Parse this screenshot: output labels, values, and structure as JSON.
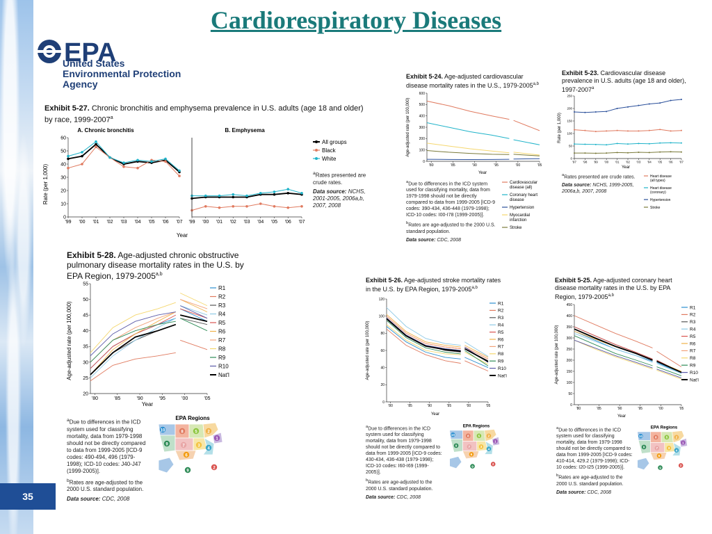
{
  "slide": {
    "title": "Cardiorespiratory Diseases",
    "page_number": "35"
  },
  "logo": {
    "letters": "EPA",
    "line1": "United States",
    "line2": "Environmental Protection",
    "line3": "Agency"
  },
  "x_year_ticks_99_07": [
    "'99",
    "'00",
    "'01",
    "'02",
    "'03",
    "'04",
    "'05",
    "'06",
    "'07"
  ],
  "x_year_ticks_97_07": [
    "'97",
    "'98",
    "'99",
    "'00",
    "'01",
    "'02",
    "'03",
    "'04",
    "'05",
    "'06",
    "'07"
  ],
  "x_year_ticks_80_05": [
    "'80",
    "'85",
    "'90",
    "'95",
    "'00",
    "'05"
  ],
  "regions": [
    "R1",
    "R2",
    "R3",
    "R4",
    "R5",
    "R6",
    "R7",
    "R8",
    "R9",
    "R10",
    "Nat'l"
  ],
  "region_colors": [
    "#2b8fd0",
    "#e07a5f",
    "#555555",
    "#8ec9e6",
    "#d9534f",
    "#f0b24a",
    "#f2a37a",
    "#f5d76e",
    "#2e8b57",
    "#5a5aa8",
    "#000000"
  ],
  "ex527": {
    "label": "Exhibit 5-27.",
    "caption": "Chronic bronchitis and emphysema prevalence in U.S. adults (age 18 and older) by race, 1999-2007",
    "sup": "a",
    "panelA": "A. Chronic bronchitis",
    "panelB": "B. Emphysema",
    "ylabel": "Rate (per 1,000)",
    "xlabel": "Year",
    "legend": [
      "All groups",
      "Black",
      "White"
    ],
    "note1": "Rates presented are crude rates.",
    "ds_label": "Data source:",
    "ds_text": "NCHS, 2001-2005, 2006a,b, 2007, 2008",
    "chart_data": {
      "type": "line",
      "x": [
        1999,
        2000,
        2001,
        2002,
        2003,
        2004,
        2005,
        2006,
        2007
      ],
      "ylim": [
        0,
        60
      ],
      "yticks": [
        0,
        10,
        20,
        30,
        40,
        50,
        60
      ],
      "panels": [
        {
          "name": "A. Chronic bronchitis",
          "series": [
            {
              "name": "All groups",
              "color": "#000000",
              "values": [
                44,
                46,
                55,
                45,
                40,
                42,
                41,
                43,
                34
              ]
            },
            {
              "name": "Black",
              "color": "#e07a5f",
              "values": [
                37,
                40,
                53,
                45,
                38,
                37,
                43,
                42,
                31
              ]
            },
            {
              "name": "White",
              "color": "#1fb3c9",
              "values": [
                46,
                49,
                57,
                45,
                41,
                43,
                42,
                44,
                35
              ]
            }
          ]
        },
        {
          "name": "B. Emphysema",
          "series": [
            {
              "name": "All groups",
              "color": "#000000",
              "values": [
                14,
                15,
                15,
                15,
                15,
                17,
                17,
                18,
                17
              ]
            },
            {
              "name": "Black",
              "color": "#e07a5f",
              "values": [
                5,
                8,
                7,
                8,
                8,
                10,
                8,
                7,
                8
              ]
            },
            {
              "name": "White",
              "color": "#1fb3c9",
              "values": [
                16,
                16,
                16,
                17,
                16,
                18,
                19,
                21,
                18
              ]
            }
          ]
        }
      ]
    }
  },
  "ex524": {
    "label": "Exhibit 5-24.",
    "caption": "Age-adjusted cardiovascular disease mortality rates in the U.S., 1979-2005",
    "sup": "a,b",
    "ylabel": "Age-adjusted rate (per 100,000)",
    "xlabel": "Year",
    "legend": [
      "Cardiovascular disease (all)",
      "Coronary heart disease",
      "Hypertension",
      "Myocardial infarction",
      "Stroke"
    ],
    "note_a": "Due to differences in the ICD system used for classifying mortality, data from 1979-1998 should not be directly compared to data from 1999-2005 [ICD-9 codes: 390-434, 436-448 (1979-1998); ICD-10 codes: I00-I78 (1999-2005)].",
    "note_b": "Rates are age-adjusted to the 2000 U.S. standard population.",
    "ds_label": "Data source:",
    "ds_text": "CDC, 2008",
    "chart_data": {
      "type": "line",
      "x": [
        1979,
        1984,
        1989,
        1994,
        1998,
        1999,
        2005
      ],
      "ylim": [
        0,
        600
      ],
      "yticks": [
        0,
        100,
        200,
        300,
        400,
        500,
        600
      ],
      "series": [
        {
          "name": "Cardiovascular disease (all)",
          "color": "#e07a5f",
          "values": [
            530,
            490,
            440,
            400,
            370,
            360,
            270
          ]
        },
        {
          "name": "Coronary heart disease",
          "color": "#1fb3c9",
          "values": [
            340,
            300,
            260,
            230,
            200,
            190,
            145
          ]
        },
        {
          "name": "Myocardial infarction",
          "color": "#f5d76e",
          "values": [
            160,
            135,
            110,
            90,
            75,
            80,
            55
          ]
        },
        {
          "name": "Stroke",
          "color": "#7a7a3a",
          "values": [
            95,
            80,
            70,
            62,
            60,
            62,
            47
          ]
        },
        {
          "name": "Hypertension",
          "color": "#2a4f9a",
          "values": [
            18,
            16,
            15,
            16,
            18,
            20,
            23
          ]
        }
      ]
    }
  },
  "ex523": {
    "label": "Exhibit 5-23.",
    "caption": "Cardiovascular disease prevalence in U.S. adults (age 18 and older), 1997-2007",
    "sup": "a",
    "ylabel": "Rate (per 1,000)",
    "xlabel": "Year",
    "legend": [
      "Heart disease (all types)",
      "Heart disease (coronary)",
      "Hypertension",
      "Stroke"
    ],
    "note1": "Rates presented are crude rates.",
    "ds_label": "Data source:",
    "ds_text": "NCHS, 1999-2005, 2006a,b, 2007, 2008",
    "chart_data": {
      "type": "line",
      "x": [
        1997,
        1998,
        1999,
        2000,
        2001,
        2002,
        2003,
        2004,
        2005,
        2006,
        2007
      ],
      "ylim": [
        0,
        250
      ],
      "yticks": [
        0,
        50,
        100,
        150,
        200,
        250
      ],
      "series": [
        {
          "name": "Hypertension",
          "color": "#2a4f9a",
          "values": [
            186,
            184,
            186,
            188,
            200,
            206,
            212,
            218,
            222,
            232,
            236
          ]
        },
        {
          "name": "Heart disease (all types)",
          "color": "#e07a5f",
          "values": [
            115,
            112,
            108,
            110,
            112,
            110,
            110,
            112,
            116,
            110,
            112
          ]
        },
        {
          "name": "Heart disease (coronary)",
          "color": "#1fb3c9",
          "values": [
            58,
            57,
            56,
            55,
            60,
            58,
            60,
            59,
            62,
            63,
            62
          ]
        },
        {
          "name": "Stroke",
          "color": "#7a7a3a",
          "values": [
            22,
            22,
            21,
            22,
            24,
            23,
            25,
            24,
            26,
            27,
            26
          ]
        }
      ]
    }
  },
  "ex528": {
    "label": "Exhibit 5-28.",
    "caption": "Age-adjusted chronic obstructive pulmonary disease mortality rates in the U.S. by EPA Region, 1979-2005",
    "sup": "a,b",
    "ylabel": "Age-adjusted rate (per 100,000)",
    "xlabel": "Year",
    "note_a": "Due to differences in the ICD system used for classifying mortality, data from 1979-1998 should not be directly compared to data from 1999-2005 [ICD-9 codes: 490-494, 496 (1979-1998); ICD-10 codes: J40-J47 (1999-2005)].",
    "note_b": "Rates are age-adjusted to the 2000 U.S. standard population.",
    "ds_label": "Data source:",
    "ds_text": "CDC, 2008",
    "chart_data": {
      "type": "line",
      "x": [
        1979,
        1984,
        1989,
        1994,
        1998,
        1999,
        2005
      ],
      "ylim": [
        20,
        55
      ],
      "yticks": [
        20,
        25,
        30,
        35,
        40,
        45,
        50,
        55
      ],
      "series": [
        {
          "name": "R1",
          "values": [
            28,
            35,
            39,
            42,
            44,
            47,
            43
          ]
        },
        {
          "name": "R2",
          "values": [
            24,
            29,
            31,
            32,
            33,
            37,
            34
          ]
        },
        {
          "name": "R3",
          "values": [
            26,
            33,
            37,
            40,
            42,
            44,
            42
          ]
        },
        {
          "name": "R4",
          "values": [
            25,
            32,
            37,
            41,
            44,
            48,
            45
          ]
        },
        {
          "name": "R5",
          "values": [
            28,
            35,
            39,
            42,
            45,
            47,
            44
          ]
        },
        {
          "name": "R6",
          "values": [
            26,
            34,
            39,
            43,
            46,
            50,
            46
          ]
        },
        {
          "name": "R7",
          "values": [
            30,
            37,
            41,
            44,
            46,
            50,
            47
          ]
        },
        {
          "name": "R8",
          "values": [
            33,
            41,
            45,
            47,
            49,
            52,
            48
          ]
        },
        {
          "name": "R9",
          "values": [
            30,
            37,
            40,
            42,
            43,
            44,
            40
          ]
        },
        {
          "name": "R10",
          "values": [
            32,
            39,
            43,
            45,
            46,
            48,
            44
          ]
        },
        {
          "name": "Nat'l",
          "values": [
            26,
            33,
            38,
            40,
            42,
            45,
            43
          ]
        }
      ]
    }
  },
  "ex526": {
    "label": "Exhibit 5-26.",
    "caption": "Age-adjusted stroke mortality rates in the U.S. by EPA Region, 1979-2005",
    "sup": "a,b",
    "ylabel": "Age-adjusted rate (per 100,000)",
    "xlabel": "Year",
    "note_a": "Due to differences in the ICD system used for classifying mortality, data from 1979-1998 should not be directly compared to data from 1999-2005 [ICD-9 codes: 430-434, 436-438 (1979-1998); ICD-10 codes: I60-I69 (1999-2005)].",
    "note_b": "Rates are age-adjusted to the 2000 U.S. standard population.",
    "ds_label": "Data source:",
    "ds_text": "CDC, 2008",
    "chart_data": {
      "type": "line",
      "x": [
        1979,
        1984,
        1989,
        1994,
        1998,
        1999,
        2005
      ],
      "ylim": [
        0,
        120
      ],
      "yticks": [
        0,
        20,
        40,
        60,
        80,
        100,
        120
      ],
      "series": [
        {
          "name": "R1",
          "values": [
            88,
            70,
            58,
            52,
            50,
            52,
            40
          ]
        },
        {
          "name": "R2",
          "values": [
            85,
            66,
            55,
            48,
            45,
            48,
            36
          ]
        },
        {
          "name": "R3",
          "values": [
            98,
            78,
            66,
            60,
            58,
            62,
            48
          ]
        },
        {
          "name": "R4",
          "values": [
            110,
            88,
            74,
            68,
            66,
            70,
            53
          ]
        },
        {
          "name": "R5",
          "values": [
            100,
            80,
            68,
            64,
            62,
            64,
            50
          ]
        },
        {
          "name": "R6",
          "values": [
            102,
            82,
            70,
            66,
            64,
            66,
            52
          ]
        },
        {
          "name": "R7",
          "values": [
            100,
            80,
            68,
            64,
            62,
            64,
            50
          ]
        },
        {
          "name": "R8",
          "values": [
            90,
            72,
            60,
            56,
            55,
            58,
            44
          ]
        },
        {
          "name": "R9",
          "values": [
            95,
            75,
            63,
            58,
            56,
            60,
            42
          ]
        },
        {
          "name": "R10",
          "values": [
            98,
            78,
            66,
            62,
            60,
            64,
            46
          ]
        },
        {
          "name": "Nat'l",
          "values": [
            97,
            77,
            65,
            61,
            59,
            62,
            47
          ]
        }
      ]
    }
  },
  "ex525": {
    "label": "Exhibit 5-25.",
    "caption": "Age-adjusted coronary heart disease mortality rates in the U.S. by EPA Region, 1979-2005",
    "sup": "a,b",
    "ylabel": "Age-adjusted rate (per 100,000)",
    "xlabel": "Year",
    "note_a": "Due to differences in the ICD system used for classifying mortality, data from 1979-1998 should not be directly compared to data from 1999-2005 [ICD-9 codes: 410-414, 429.2 (1979-1998); ICD-10 codes: I20-I25 (1999-2005)].",
    "note_b": "Rates are age-adjusted to the 2000 U.S. standard population.",
    "ds_label": "Data source:",
    "ds_text": "CDC, 2008",
    "chart_data": {
      "type": "line",
      "x": [
        1979,
        1984,
        1989,
        1994,
        1998,
        1999,
        2005
      ],
      "ylim": [
        0,
        450
      ],
      "yticks": [
        0,
        50,
        100,
        150,
        200,
        250,
        300,
        350,
        400,
        450
      ],
      "series": [
        {
          "name": "R1",
          "values": [
            330,
            290,
            250,
            220,
            195,
            190,
            140
          ]
        },
        {
          "name": "R2",
          "values": [
            400,
            360,
            320,
            285,
            255,
            240,
            170
          ]
        },
        {
          "name": "R3",
          "values": [
            350,
            310,
            270,
            235,
            205,
            200,
            145
          ]
        },
        {
          "name": "R4",
          "values": [
            320,
            285,
            250,
            220,
            190,
            185,
            140
          ]
        },
        {
          "name": "R5",
          "values": [
            350,
            310,
            270,
            235,
            205,
            200,
            145
          ]
        },
        {
          "name": "R6",
          "values": [
            330,
            295,
            260,
            230,
            200,
            195,
            150
          ]
        },
        {
          "name": "R7",
          "values": [
            340,
            300,
            262,
            230,
            200,
            195,
            145
          ]
        },
        {
          "name": "R8",
          "values": [
            290,
            250,
            215,
            185,
            160,
            155,
            115
          ]
        },
        {
          "name": "R9",
          "values": [
            310,
            270,
            230,
            200,
            175,
            170,
            130
          ]
        },
        {
          "name": "R10",
          "values": [
            290,
            255,
            220,
            190,
            165,
            160,
            120
          ]
        },
        {
          "name": "Nat'l",
          "values": [
            340,
            300,
            262,
            230,
            200,
            195,
            145
          ]
        }
      ]
    }
  },
  "map": {
    "title": "EPA Regions",
    "labels": [
      "1",
      "2",
      "3",
      "4",
      "5",
      "6",
      "7",
      "8",
      "9",
      "10"
    ]
  }
}
